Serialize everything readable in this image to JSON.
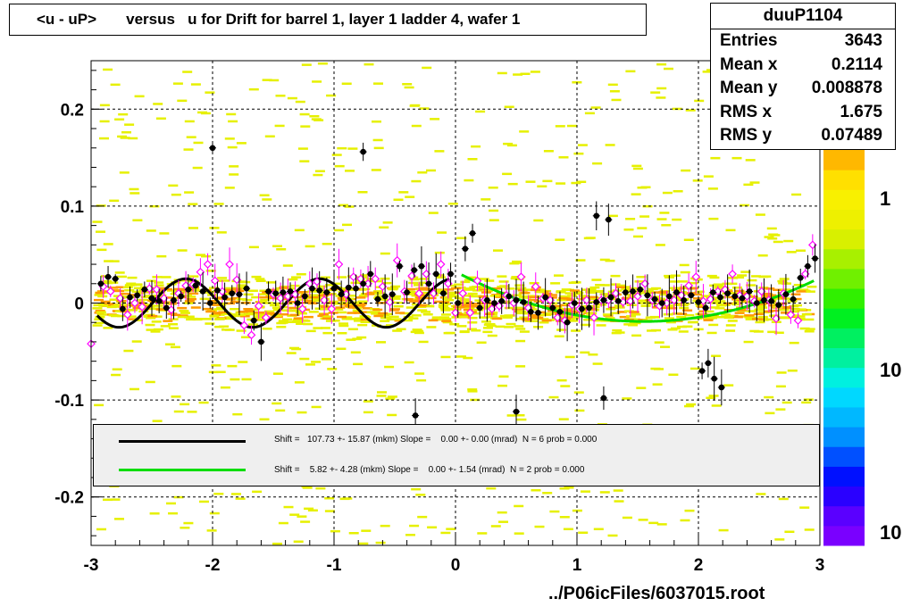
{
  "title": "<u - uP>       versus   u for Drift for barrel 1, layer 1 ladder 4, wafer 1",
  "stats": {
    "name": "duuP1104",
    "rows": [
      {
        "label": "Entries",
        "value": "3643"
      },
      {
        "label": "Mean x",
        "value": "0.2114"
      },
      {
        "label": "Mean y",
        "value": "0.008878"
      },
      {
        "label": "RMS x",
        "value": "1.675"
      },
      {
        "label": "RMS y",
        "value": "0.07489"
      }
    ]
  },
  "legend": [
    {
      "color": "#000000",
      "text": "Shift =   107.73 +- 15.87 (mkm) Slope =    0.00 +- 0.00 (mrad)  N = 6 prob = 0.000"
    },
    {
      "color": "#00dd00",
      "text": "Shift =    5.82 +- 4.28 (mkm) Slope =    0.00 +- 1.54 (mrad)  N = 2 prob = 0.000"
    }
  ],
  "footer": "../P06icFiles/6037015.root",
  "colors": {
    "yellow": "#e6f000",
    "orange": "#ff9900",
    "pink": "#ff00ff",
    "black_fit": "#000000",
    "green_fit": "#00dd00"
  },
  "chart_data": {
    "type": "scatter",
    "xlim": [
      -3,
      3
    ],
    "ylim": [
      -0.25,
      0.25
    ],
    "x_ticks": [
      -3,
      -2,
      -1,
      0,
      1,
      2,
      3
    ],
    "x_tick_labels": [
      "-3",
      "-2",
      "-1",
      "0",
      "1",
      "2",
      "3"
    ],
    "y_ticks": [
      -0.2,
      -0.1,
      0,
      0.1,
      0.2
    ],
    "y_tick_labels": [
      "-0.2",
      "-0.1",
      "0",
      "0.1",
      "0.2"
    ],
    "colorbar_labels": [
      "1",
      "10",
      "10"
    ],
    "grid": true,
    "black_points": [
      [
        -2.92,
        0.02
      ],
      [
        -2.86,
        0.027
      ],
      [
        -2.8,
        0.025
      ],
      [
        -2.74,
        -0.006
      ],
      [
        -2.68,
        0.006
      ],
      [
        -2.62,
        0.008
      ],
      [
        -2.56,
        0.014
      ],
      [
        -2.5,
        0.005
      ],
      [
        -2.44,
        0.002
      ],
      [
        -2.38,
        -0.005
      ],
      [
        -2.32,
        0.003
      ],
      [
        -2.26,
        0.007
      ],
      [
        -2.2,
        0.014
      ],
      [
        -2.14,
        0.018
      ],
      [
        -2.08,
        0.012
      ],
      [
        -2.02,
        0.0
      ],
      [
        -1.96,
        0.013
      ],
      [
        -1.9,
        0.006
      ],
      [
        -1.84,
        0.01
      ],
      [
        -1.78,
        0.009
      ],
      [
        -1.72,
        0.015
      ],
      [
        -1.66,
        -0.018
      ],
      [
        -1.6,
        -0.04
      ],
      [
        -1.54,
        0.012
      ],
      [
        -1.48,
        0.01
      ],
      [
        -1.42,
        0.011
      ],
      [
        -1.36,
        0.012
      ],
      [
        -1.3,
        0.0
      ],
      [
        -1.24,
        0.007
      ],
      [
        -1.18,
        0.015
      ],
      [
        -1.12,
        0.013
      ],
      [
        -1.06,
        0.011
      ],
      [
        -1.0,
        0.015
      ],
      [
        -0.94,
        0.009
      ],
      [
        -0.88,
        0.016
      ],
      [
        -0.82,
        0.015
      ],
      [
        -0.76,
        0.02
      ],
      [
        -0.7,
        0.03
      ],
      [
        -0.64,
        0.004
      ],
      [
        -0.58,
        0.007
      ],
      [
        -0.52,
        0.009
      ],
      [
        -0.46,
        0.038
      ],
      [
        -0.4,
        0.011
      ],
      [
        -0.34,
        0.034
      ],
      [
        -0.28,
        0.038
      ],
      [
        -0.22,
        0.02
      ],
      [
        -0.16,
        0.03
      ],
      [
        -0.1,
        0.01
      ],
      [
        -0.04,
        0.03
      ],
      [
        0.02,
        0.0
      ],
      [
        0.08,
        0.056
      ],
      [
        0.14,
        0.072
      ],
      [
        0.2,
        -0.005
      ],
      [
        0.26,
        0.003
      ],
      [
        0.32,
        0.0
      ],
      [
        0.38,
        0.002
      ],
      [
        0.44,
        0.007
      ],
      [
        0.5,
        0.003
      ],
      [
        0.56,
        0.001
      ],
      [
        0.62,
        -0.009
      ],
      [
        0.68,
        -0.01
      ],
      [
        0.74,
        0.006
      ],
      [
        0.8,
        -0.005
      ],
      [
        0.86,
        -0.009
      ],
      [
        0.92,
        -0.02
      ],
      [
        0.98,
        0.0
      ],
      [
        1.04,
        -0.006
      ],
      [
        1.1,
        -0.005
      ],
      [
        1.16,
        0.001
      ],
      [
        1.22,
        0.003
      ],
      [
        1.28,
        0.006
      ],
      [
        1.34,
        0.002
      ],
      [
        1.4,
        0.011
      ],
      [
        1.46,
        0.012
      ],
      [
        1.52,
        0.014
      ],
      [
        1.58,
        0.008
      ],
      [
        1.64,
        0.004
      ],
      [
        1.7,
        0.0
      ],
      [
        1.76,
        0.007
      ],
      [
        1.82,
        0.011
      ],
      [
        1.88,
        0.003
      ],
      [
        1.94,
        0.008
      ],
      [
        2.0,
        0.001
      ],
      [
        2.06,
        -0.005
      ],
      [
        2.12,
        0.011
      ],
      [
        2.18,
        0.006
      ],
      [
        2.24,
        0.01
      ],
      [
        2.3,
        0.007
      ],
      [
        2.36,
        0.005
      ],
      [
        2.42,
        0.012
      ],
      [
        2.48,
        0.0
      ],
      [
        2.54,
        0.003
      ],
      [
        2.6,
        0.002
      ],
      [
        2.66,
        -0.002
      ],
      [
        2.72,
        0.009
      ],
      [
        2.78,
        0.004
      ],
      [
        2.84,
        0.026
      ],
      [
        2.9,
        0.038
      ],
      [
        2.96,
        0.046
      ],
      [
        -2.0,
        0.16
      ],
      [
        -0.76,
        0.156
      ],
      [
        -0.33,
        -0.116
      ],
      [
        0.5,
        -0.112
      ],
      [
        1.16,
        0.09
      ],
      [
        1.22,
        -0.098
      ],
      [
        1.26,
        0.086
      ],
      [
        2.03,
        -0.07
      ],
      [
        2.08,
        -0.062
      ],
      [
        2.13,
        -0.078
      ],
      [
        2.19,
        -0.087
      ]
    ],
    "pink_points": [
      [
        -3.0,
        -0.042
      ],
      [
        -2.9,
        0.017
      ],
      [
        -2.84,
        0.012
      ],
      [
        -2.76,
        0.005
      ],
      [
        -2.7,
        -0.012
      ],
      [
        -2.64,
        0.0
      ],
      [
        -2.58,
        -0.004
      ],
      [
        -2.52,
        0.015
      ],
      [
        -2.46,
        0.014
      ],
      [
        -2.4,
        0.005
      ],
      [
        -2.34,
        -0.007
      ],
      [
        -2.28,
        0.01
      ],
      [
        -2.22,
        0.018
      ],
      [
        -2.16,
        0.019
      ],
      [
        -2.1,
        0.032
      ],
      [
        -2.04,
        0.04
      ],
      [
        -1.98,
        0.023
      ],
      [
        -1.92,
        0.012
      ],
      [
        -1.86,
        0.04
      ],
      [
        -1.8,
        0.024
      ],
      [
        -1.74,
        -0.023
      ],
      [
        -1.68,
        -0.033
      ],
      [
        -1.62,
        -0.003
      ],
      [
        -1.56,
        -0.015
      ],
      [
        -1.5,
        0.009
      ],
      [
        -1.44,
        0.005
      ],
      [
        -1.38,
        0.007
      ],
      [
        -1.32,
        0.009
      ],
      [
        -1.26,
        -0.006
      ],
      [
        -1.2,
        0.02
      ],
      [
        -1.14,
        0.022
      ],
      [
        -1.08,
        0.003
      ],
      [
        -1.02,
        -0.006
      ],
      [
        -0.96,
        0.04
      ],
      [
        -0.9,
        0.009
      ],
      [
        -0.84,
        0.027
      ],
      [
        -0.78,
        0.025
      ],
      [
        -0.72,
        0.02
      ],
      [
        -0.66,
        0.025
      ],
      [
        -0.6,
        0.017
      ],
      [
        -0.54,
        0.001
      ],
      [
        -0.48,
        0.044
      ],
      [
        -0.42,
        0.012
      ],
      [
        -0.36,
        0.028
      ],
      [
        -0.3,
        0.01
      ],
      [
        -0.24,
        0.03
      ],
      [
        -0.18,
        0.01
      ],
      [
        -0.12,
        0.04
      ],
      [
        -0.06,
        0.02
      ],
      [
        0.0,
        -0.01
      ],
      [
        0.06,
        0.01
      ],
      [
        0.12,
        -0.01
      ],
      [
        0.18,
        0.023
      ],
      [
        0.24,
        0.003
      ],
      [
        0.3,
        -0.006
      ],
      [
        0.36,
        -0.003
      ],
      [
        0.42,
        0.008
      ],
      [
        0.48,
        0.0
      ],
      [
        0.54,
        0.027
      ],
      [
        0.6,
        -0.005
      ],
      [
        0.66,
        0.017
      ],
      [
        0.72,
        0.005
      ],
      [
        0.78,
        0.003
      ],
      [
        0.84,
        -0.015
      ],
      [
        0.9,
        -0.018
      ],
      [
        0.96,
        -0.002
      ],
      [
        1.02,
        -0.006
      ],
      [
        1.08,
        0.003
      ],
      [
        1.14,
        -0.015
      ],
      [
        1.2,
        0.003
      ],
      [
        1.26,
        0.003
      ],
      [
        1.32,
        0.01
      ],
      [
        1.38,
        0.001
      ],
      [
        1.44,
        0.002
      ],
      [
        1.5,
        0.007
      ],
      [
        1.56,
        0.02
      ],
      [
        1.62,
        0.003
      ],
      [
        1.68,
        -0.003
      ],
      [
        1.74,
        0.0
      ],
      [
        1.8,
        0.003
      ],
      [
        1.86,
        0.008
      ],
      [
        1.92,
        0.018
      ],
      [
        1.98,
        0.027
      ],
      [
        2.04,
        0.002
      ],
      [
        2.1,
        0.004
      ],
      [
        2.16,
        0.012
      ],
      [
        2.22,
        0.014
      ],
      [
        2.28,
        0.03
      ],
      [
        2.34,
        0.008
      ],
      [
        2.4,
        0.007
      ],
      [
        2.46,
        0.002
      ],
      [
        2.52,
        0.012
      ],
      [
        2.58,
        0.003
      ],
      [
        2.64,
        -0.016
      ],
      [
        2.7,
        0.01
      ],
      [
        2.76,
        -0.012
      ],
      [
        2.82,
        -0.018
      ],
      [
        2.88,
        0.03
      ],
      [
        2.94,
        0.06
      ]
    ],
    "fits": [
      {
        "color": "#000000",
        "x_range": [
          -2.95,
          -0.05
        ],
        "center": 0.0,
        "amplitude": 0.025,
        "period": 1.1,
        "phase": -2.22
      },
      {
        "color": "#00dd00",
        "x_range": [
          0.05,
          2.95
        ],
        "vertex_x": 1.55,
        "vertex_y": -0.019,
        "end_y": 0.023
      }
    ]
  }
}
